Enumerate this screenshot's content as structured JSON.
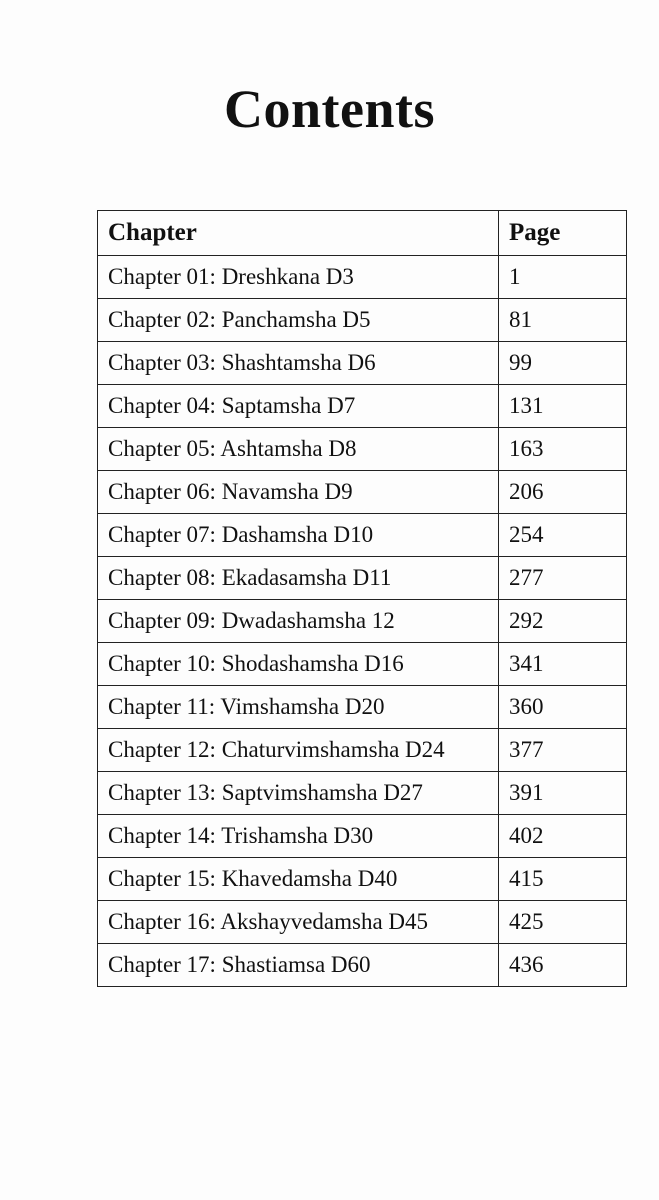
{
  "header": {
    "title": "Contents"
  },
  "table": {
    "columns": [
      "Chapter",
      "Page"
    ],
    "rows": [
      [
        "Chapter 01: Dreshkana D3",
        "1"
      ],
      [
        "Chapter 02: Panchamsha D5",
        "81"
      ],
      [
        "Chapter 03: Shashtamsha D6",
        "99"
      ],
      [
        "Chapter 04: Saptamsha D7",
        "131"
      ],
      [
        "Chapter 05: Ashtamsha D8",
        "163"
      ],
      [
        "Chapter 06: Navamsha D9",
        "206"
      ],
      [
        "Chapter 07: Dashamsha D10",
        "254"
      ],
      [
        "Chapter 08: Ekadasamsha D11",
        "277"
      ],
      [
        "Chapter 09: Dwadashamsha 12",
        "292"
      ],
      [
        "Chapter 10: Shodashamsha D16",
        "341"
      ],
      [
        "Chapter 11: Vimshamsha D20",
        "360"
      ],
      [
        "Chapter 12: Chaturvimshamsha D24",
        "377"
      ],
      [
        "Chapter 13: Saptvimshamsha D27",
        "391"
      ],
      [
        "Chapter 14: Trishamsha D30",
        "402"
      ],
      [
        "Chapter 15: Khavedamsha D40",
        "415"
      ],
      [
        "Chapter 16: Akshayvedamsha D45",
        "425"
      ],
      [
        "Chapter 17: Shastiamsa D60",
        "436"
      ]
    ]
  }
}
